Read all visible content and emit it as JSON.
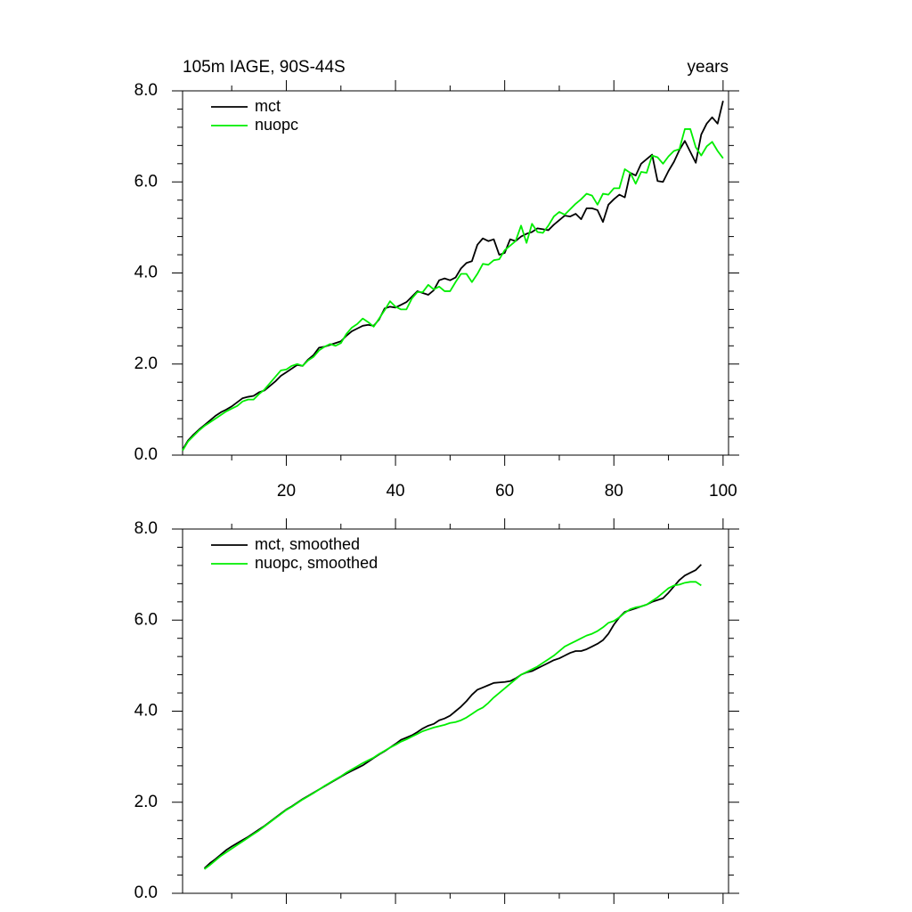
{
  "chart_data": [
    {
      "type": "line",
      "title": "105m IAGE, 90S-44S",
      "units_label": "years",
      "x": [
        1,
        2,
        3,
        4,
        5,
        6,
        7,
        8,
        9,
        10,
        11,
        12,
        13,
        14,
        15,
        16,
        17,
        18,
        19,
        20,
        21,
        22,
        23,
        24,
        25,
        26,
        27,
        28,
        29,
        30,
        31,
        32,
        33,
        34,
        35,
        36,
        37,
        38,
        39,
        40,
        41,
        42,
        43,
        44,
        45,
        46,
        47,
        48,
        49,
        50,
        51,
        52,
        53,
        54,
        55,
        56,
        57,
        58,
        59,
        60,
        61,
        62,
        63,
        64,
        65,
        66,
        67,
        68,
        69,
        70,
        71,
        72,
        73,
        74,
        75,
        76,
        77,
        78,
        79,
        80,
        81,
        82,
        83,
        84,
        85,
        86,
        87,
        88,
        89,
        90,
        91,
        92,
        93,
        94,
        95,
        96,
        97,
        98,
        99,
        100
      ],
      "series": [
        {
          "name": "mct",
          "color": "#000000",
          "values": [
            0.12,
            0.32,
            0.45,
            0.56,
            0.66,
            0.76,
            0.86,
            0.94,
            1.0,
            1.07,
            1.16,
            1.25,
            1.28,
            1.3,
            1.38,
            1.42,
            1.52,
            1.62,
            1.74,
            1.82,
            1.9,
            1.98,
            1.96,
            2.1,
            2.2,
            2.36,
            2.38,
            2.42,
            2.46,
            2.5,
            2.62,
            2.72,
            2.78,
            2.84,
            2.86,
            2.84,
            2.98,
            3.22,
            3.26,
            3.24,
            3.3,
            3.36,
            3.48,
            3.6,
            3.56,
            3.52,
            3.62,
            3.84,
            3.88,
            3.84,
            3.9,
            4.1,
            4.22,
            4.26,
            4.62,
            4.76,
            4.7,
            4.74,
            4.4,
            4.44,
            4.74,
            4.7,
            4.8,
            4.86,
            4.9,
            4.98,
            4.96,
            4.94,
            5.06,
            5.16,
            5.26,
            5.24,
            5.3,
            5.18,
            5.42,
            5.42,
            5.38,
            5.12,
            5.5,
            5.62,
            5.72,
            5.66,
            6.2,
            6.14,
            6.4,
            6.5,
            6.6,
            6.02,
            6.0,
            6.24,
            6.44,
            6.7,
            6.9,
            6.66,
            6.42,
            7.04,
            7.28,
            7.42,
            7.28,
            7.78
          ]
        },
        {
          "name": "nuopc",
          "color": "#00ee00",
          "values": [
            0.1,
            0.3,
            0.42,
            0.54,
            0.64,
            0.72,
            0.8,
            0.88,
            0.96,
            1.02,
            1.08,
            1.18,
            1.22,
            1.22,
            1.34,
            1.44,
            1.58,
            1.72,
            1.86,
            1.88,
            1.96,
            2.0,
            1.96,
            2.08,
            2.16,
            2.3,
            2.38,
            2.44,
            2.4,
            2.46,
            2.66,
            2.8,
            2.88,
            3.0,
            2.92,
            2.82,
            3.0,
            3.18,
            3.38,
            3.26,
            3.2,
            3.2,
            3.44,
            3.58,
            3.58,
            3.74,
            3.64,
            3.7,
            3.6,
            3.6,
            3.8,
            3.98,
            3.98,
            3.8,
            3.98,
            4.2,
            4.18,
            4.28,
            4.3,
            4.5,
            4.6,
            4.7,
            5.04,
            4.66,
            5.08,
            4.9,
            4.88,
            5.04,
            5.24,
            5.34,
            5.28,
            5.4,
            5.52,
            5.62,
            5.74,
            5.7,
            5.5,
            5.74,
            5.72,
            5.86,
            5.86,
            6.28,
            6.2,
            5.96,
            6.22,
            6.2,
            6.58,
            6.54,
            6.4,
            6.56,
            6.68,
            6.72,
            7.16,
            7.16,
            6.76,
            6.58,
            6.78,
            6.88,
            6.68,
            6.52
          ]
        }
      ],
      "xlim": [
        1,
        101
      ],
      "ylim": [
        0,
        8
      ],
      "xticks": [
        20,
        40,
        60,
        80,
        100
      ],
      "show_xtick_labels": true,
      "xminorticks": [
        10,
        30,
        50,
        70,
        90
      ],
      "yticks": [
        {
          "value": 0,
          "label": "0.0"
        },
        {
          "value": 2,
          "label": "2.0"
        },
        {
          "value": 4,
          "label": "4.0"
        },
        {
          "value": 6,
          "label": "6.0"
        },
        {
          "value": 8,
          "label": "8.0"
        }
      ],
      "yminorticks": [
        0.4,
        0.8,
        1.2,
        1.6,
        2.4,
        2.8,
        3.2,
        3.6,
        4.4,
        4.8,
        5.2,
        5.6,
        6.4,
        6.8,
        7.2,
        7.6
      ],
      "legend": "upper left"
    },
    {
      "type": "line",
      "x": [
        5,
        6,
        7,
        8,
        9,
        10,
        11,
        12,
        13,
        14,
        15,
        16,
        17,
        18,
        19,
        20,
        21,
        22,
        23,
        24,
        25,
        26,
        27,
        28,
        29,
        30,
        31,
        32,
        33,
        34,
        35,
        36,
        37,
        38,
        39,
        40,
        41,
        42,
        43,
        44,
        45,
        46,
        47,
        48,
        49,
        50,
        51,
        52,
        53,
        54,
        55,
        56,
        57,
        58,
        59,
        60,
        61,
        62,
        63,
        64,
        65,
        66,
        67,
        68,
        69,
        70,
        71,
        72,
        73,
        74,
        75,
        76,
        77,
        78,
        79,
        80,
        81,
        82,
        83,
        84,
        85,
        86,
        87,
        88,
        89,
        90,
        91,
        92,
        93,
        94,
        95,
        96
      ],
      "series": [
        {
          "name": "mct, smoothed",
          "color": "#000000",
          "values": [
            0.55,
            0.66,
            0.75,
            0.85,
            0.95,
            1.03,
            1.1,
            1.17,
            1.24,
            1.32,
            1.4,
            1.48,
            1.57,
            1.66,
            1.75,
            1.84,
            1.91,
            1.99,
            2.07,
            2.14,
            2.21,
            2.28,
            2.35,
            2.42,
            2.49,
            2.56,
            2.63,
            2.69,
            2.75,
            2.81,
            2.89,
            2.97,
            3.05,
            3.12,
            3.2,
            3.28,
            3.37,
            3.42,
            3.47,
            3.54,
            3.62,
            3.68,
            3.72,
            3.8,
            3.84,
            3.9,
            4.0,
            4.1,
            4.22,
            4.36,
            4.47,
            4.52,
            4.57,
            4.62,
            4.63,
            4.64,
            4.66,
            4.72,
            4.8,
            4.85,
            4.88,
            4.94,
            5.0,
            5.06,
            5.12,
            5.16,
            5.22,
            5.28,
            5.32,
            5.32,
            5.36,
            5.42,
            5.48,
            5.56,
            5.7,
            5.9,
            6.06,
            6.18,
            6.22,
            6.26,
            6.3,
            6.34,
            6.4,
            6.44,
            6.48,
            6.6,
            6.74,
            6.88,
            6.98,
            7.04,
            7.1,
            7.22
          ]
        },
        {
          "name": "nuopc, smoothed",
          "color": "#00ee00",
          "values": [
            0.53,
            0.62,
            0.72,
            0.82,
            0.9,
            0.98,
            1.06,
            1.14,
            1.22,
            1.3,
            1.38,
            1.47,
            1.56,
            1.65,
            1.74,
            1.83,
            1.9,
            1.98,
            2.06,
            2.13,
            2.2,
            2.28,
            2.36,
            2.43,
            2.5,
            2.57,
            2.65,
            2.72,
            2.79,
            2.86,
            2.92,
            2.98,
            3.06,
            3.13,
            3.2,
            3.26,
            3.33,
            3.38,
            3.44,
            3.5,
            3.56,
            3.6,
            3.64,
            3.67,
            3.7,
            3.74,
            3.76,
            3.8,
            3.86,
            3.94,
            4.02,
            4.08,
            4.18,
            4.3,
            4.4,
            4.5,
            4.6,
            4.7,
            4.8,
            4.86,
            4.92,
            4.98,
            5.06,
            5.14,
            5.22,
            5.32,
            5.42,
            5.48,
            5.54,
            5.6,
            5.66,
            5.7,
            5.76,
            5.84,
            5.94,
            5.98,
            6.06,
            6.16,
            6.24,
            6.28,
            6.3,
            6.34,
            6.42,
            6.5,
            6.6,
            6.7,
            6.76,
            6.78,
            6.82,
            6.84,
            6.84,
            6.76
          ]
        }
      ],
      "xlim": [
        1,
        101
      ],
      "ylim": [
        0,
        8
      ],
      "xticks": [
        20,
        40,
        60,
        80,
        100
      ],
      "show_xtick_labels": false,
      "xminorticks": [
        10,
        30,
        50,
        70,
        90
      ],
      "yticks": [
        {
          "value": 0,
          "label": "0.0"
        },
        {
          "value": 2,
          "label": "2.0"
        },
        {
          "value": 4,
          "label": "4.0"
        },
        {
          "value": 6,
          "label": "6.0"
        },
        {
          "value": 8,
          "label": "8.0"
        }
      ],
      "yminorticks": [
        0.4,
        0.8,
        1.2,
        1.6,
        2.4,
        2.8,
        3.2,
        3.6,
        4.4,
        4.8,
        5.2,
        5.6,
        6.4,
        6.8,
        7.2,
        7.6
      ],
      "legend": "upper left"
    }
  ]
}
